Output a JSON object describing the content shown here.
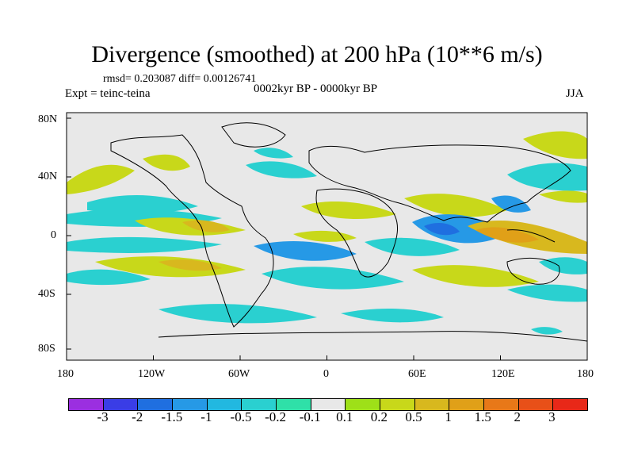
{
  "title": "Divergence (smoothed) at 200 hPa (10**6 m/s)",
  "stats": "rmsd= 0.203087 diff= 0.00126741",
  "experiment": "Expt = teinc-teina",
  "period": "0002kyr BP - 0000kyr BP",
  "season": "JJA",
  "x_axis_ticks": [
    "180",
    "120W",
    "60W",
    "0",
    "60E",
    "120E",
    "180"
  ],
  "y_axis_ticks": [
    "80N",
    "40N",
    "0",
    "40S",
    "80S"
  ],
  "colorbar": {
    "colors": [
      "#9b2fe0",
      "#3a3de6",
      "#1f6fe0",
      "#2699e6",
      "#22b8e0",
      "#2ad0d0",
      "#2fe0a8",
      "#e8e8e8",
      "#9ee018",
      "#c8d81a",
      "#d8b81e",
      "#e0a018",
      "#e87818",
      "#e85018",
      "#e82818"
    ],
    "labels": [
      "-3",
      "-2",
      "-1.5",
      "-1",
      "-0.5",
      "-0.2",
      "-0.1",
      "0.1",
      "0.2",
      "0.5",
      "1",
      "1.5",
      "2",
      "3"
    ]
  }
}
